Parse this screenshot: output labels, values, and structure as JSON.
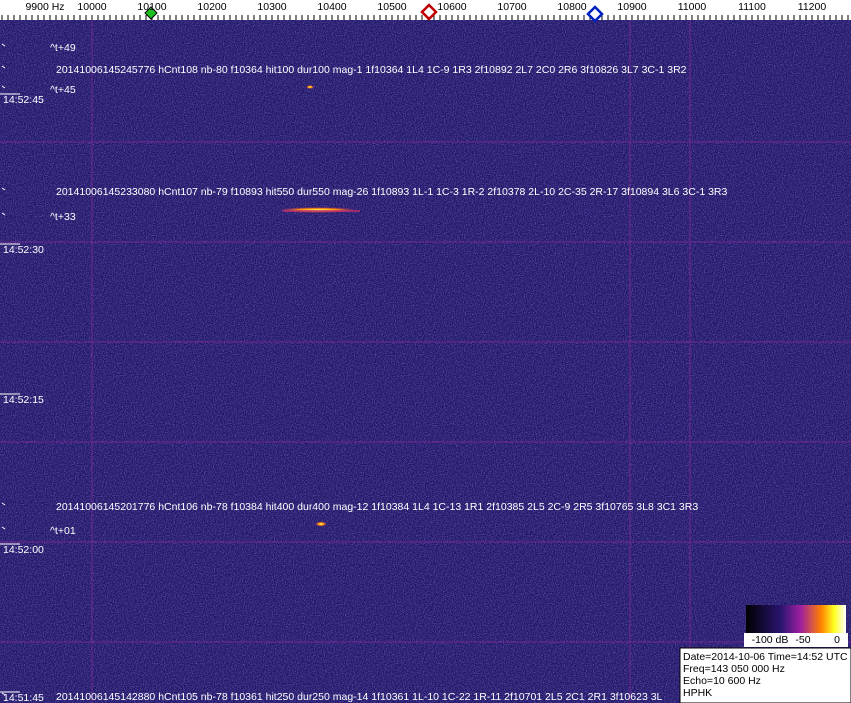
{
  "ruler": {
    "labels": [
      "9900 Hz",
      "10000",
      "10100",
      "10200",
      "10300",
      "10400",
      "10500",
      "10600",
      "10700",
      "10800",
      "10900",
      "11000",
      "11100",
      "11200"
    ]
  },
  "time_labels": [
    "14:52:45",
    "14:52:30",
    "14:52:15",
    "14:52:00",
    "14:51:45"
  ],
  "markers": [
    "^t+49",
    "^t+45",
    "^t+33",
    "^t+01"
  ],
  "events": [
    "20141006145245776 hCnt108 nb-80 f10364 hit100 dur100 mag-1 1f10364 1L4 1C-9 1R3 2f10892 2L7 2C0 2R6 3f10826 3L7 3C-1 3R2",
    "20141006145233080 hCnt107 nb-79 f10893 hit550 dur550 mag-26 1f10893 1L-1 1C-3 1R-2 2f10378 2L-10 2C-35 2R-17 3f10894 3L6 3C-1 3R3",
    "20141006145201776 hCnt106 nb-78 f10384 hit400 dur400 mag-12 1f10384 1L4 1C-13 1R1 2f10385 2L5 2C-9 2R5 3f10765 3L8 3C1 3R3",
    "20141006145142880 hCnt105 nb-78 f10361 hit250 dur250 mag-14 1f10361 1L-10 1C-22 1R-11 2f10701 2L5 2C1 2R1 3f10623 3L"
  ],
  "scale_labels": [
    "-100 dB",
    "-50",
    "0"
  ],
  "info": [
    "Date=2014-10-06 Time=14:52 UTC",
    "Freq=143 050 000 Hz",
    "Echo=10 600 Hz",
    "HPHK"
  ]
}
